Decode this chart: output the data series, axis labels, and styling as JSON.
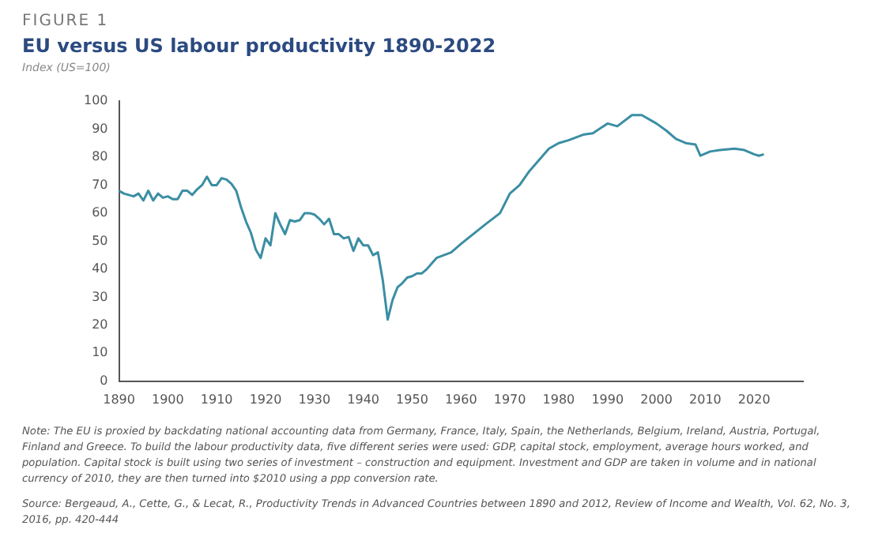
{
  "chart_data": {
    "type": "line",
    "title": "EU versus US labour productivity 1890-2022",
    "subtitle": "Index (US=100)",
    "annotations": [
      "FIGURE 1",
      "Note: The EU is proxied by backdating national accounting data from Germany, France, Italy, Spain, the Netherlands, Belgium, Ireland, Austria, Portugal, Finland and Greece. To build the labour productivity data, five different series were used: GDP, capital stock, employment, average hours worked, and population. Capital stock is built using two series of investment – construction and equipment. Investment and GDP are taken in volume and in national currency of 2010, they are then turned into $2010 using a ppp conversion rate.",
      "Source: Bergeaud, A., Cette, G., & Lecat, R., Productivity Trends in Advanced Countries between 1890 and 2012, Review of Income and Wealth, Vol. 62, No. 3, 2016, pp. 420-444"
    ],
    "x": [
      1890,
      1891,
      1892,
      1893,
      1894,
      1895,
      1896,
      1897,
      1898,
      1899,
      1900,
      1901,
      1902,
      1903,
      1904,
      1905,
      1906,
      1907,
      1908,
      1909,
      1910,
      1911,
      1912,
      1913,
      1914,
      1915,
      1916,
      1917,
      1918,
      1919,
      1920,
      1921,
      1922,
      1923,
      1924,
      1925,
      1926,
      1927,
      1928,
      1929,
      1930,
      1931,
      1932,
      1933,
      1934,
      1935,
      1936,
      1937,
      1938,
      1939,
      1940,
      1941,
      1942,
      1943,
      1944,
      1945,
      1946,
      1947,
      1948,
      1949,
      1950,
      1951,
      1952,
      1953,
      1954,
      1955,
      1958,
      1960,
      1965,
      1968,
      1970,
      1972,
      1974,
      1976,
      1978,
      1980,
      1982,
      1985,
      1987,
      1990,
      1992,
      1995,
      1997,
      2000,
      2002,
      2004,
      2006,
      2008,
      2009,
      2011,
      2013,
      2016,
      2018,
      2020,
      2021,
      2022
    ],
    "series": [
      {
        "color": "#3b8ea3",
        "values": [
          68,
          67,
          66.5,
          66,
          67,
          64.5,
          68,
          64.5,
          67,
          65.5,
          66,
          65,
          65,
          68,
          68,
          66.5,
          68.5,
          70,
          73,
          70,
          70,
          72.5,
          72,
          70.5,
          68,
          62,
          57,
          53,
          47,
          44,
          51,
          48.5,
          60,
          56,
          52.5,
          57.5,
          57,
          57.5,
          60,
          60,
          59.5,
          58,
          56,
          58,
          52.5,
          52.5,
          51,
          51.5,
          46.5,
          51,
          48.5,
          48.5,
          45,
          46,
          36,
          22,
          29,
          33.5,
          35,
          37,
          37.5,
          38.5,
          38.5,
          40,
          42,
          44,
          46,
          49,
          56,
          60,
          67,
          70,
          75,
          79,
          83,
          85,
          86,
          88,
          88.5,
          92,
          91,
          95,
          95,
          92,
          89.5,
          86.5,
          85,
          84.5,
          80.5,
          82,
          82.5,
          83,
          82.5,
          81,
          80.5,
          81
        ]
      }
    ],
    "xlim": [
      1890,
      2030
    ],
    "xticks": [
      1890,
      1900,
      1910,
      1920,
      1930,
      1940,
      1950,
      1960,
      1970,
      1980,
      1990,
      2000,
      2010,
      2020
    ],
    "ylim": [
      0,
      100
    ],
    "yticks": [
      0,
      10,
      20,
      30,
      40,
      50,
      60,
      70,
      80,
      90,
      100
    ],
    "grid": false,
    "legend": false,
    "marker": "none",
    "line_style": "solid"
  }
}
